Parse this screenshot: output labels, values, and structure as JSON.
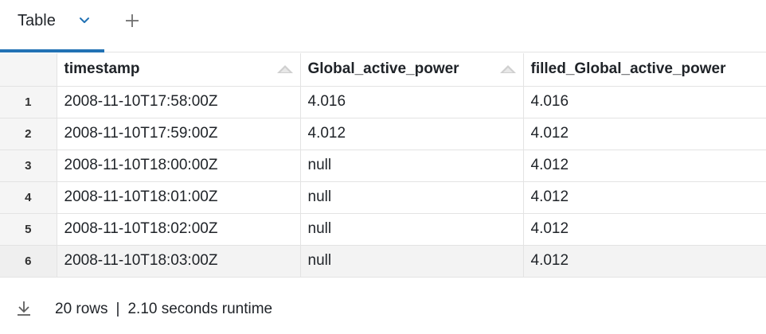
{
  "tabs": [
    {
      "label": "Table"
    }
  ],
  "table": {
    "columns": [
      "timestamp",
      "Global_active_power",
      "filled_Global_active_power"
    ],
    "rows": [
      {
        "index": "1",
        "cells": [
          "2008-11-10T17:58:00Z",
          "4.016",
          "4.016"
        ]
      },
      {
        "index": "2",
        "cells": [
          "2008-11-10T17:59:00Z",
          "4.012",
          "4.012"
        ]
      },
      {
        "index": "3",
        "cells": [
          "2008-11-10T18:00:00Z",
          "null",
          "4.012"
        ]
      },
      {
        "index": "4",
        "cells": [
          "2008-11-10T18:01:00Z",
          "null",
          "4.012"
        ]
      },
      {
        "index": "5",
        "cells": [
          "2008-11-10T18:02:00Z",
          "null",
          "4.012"
        ]
      },
      {
        "index": "6",
        "cells": [
          "2008-11-10T18:03:00Z",
          "null",
          "4.012"
        ]
      }
    ]
  },
  "footer": {
    "rows_label": "20 rows",
    "separator": "|",
    "runtime_label": "2.10 seconds runtime"
  },
  "icons": {
    "tab_menu": "chevron-down-icon",
    "add_tab": "plus-icon",
    "sort": "sort-icon",
    "download": "download-icon"
  },
  "colors": {
    "accent": "#2272b4",
    "border": "#e3e3e3",
    "index_bg": "#f5f5f5"
  }
}
